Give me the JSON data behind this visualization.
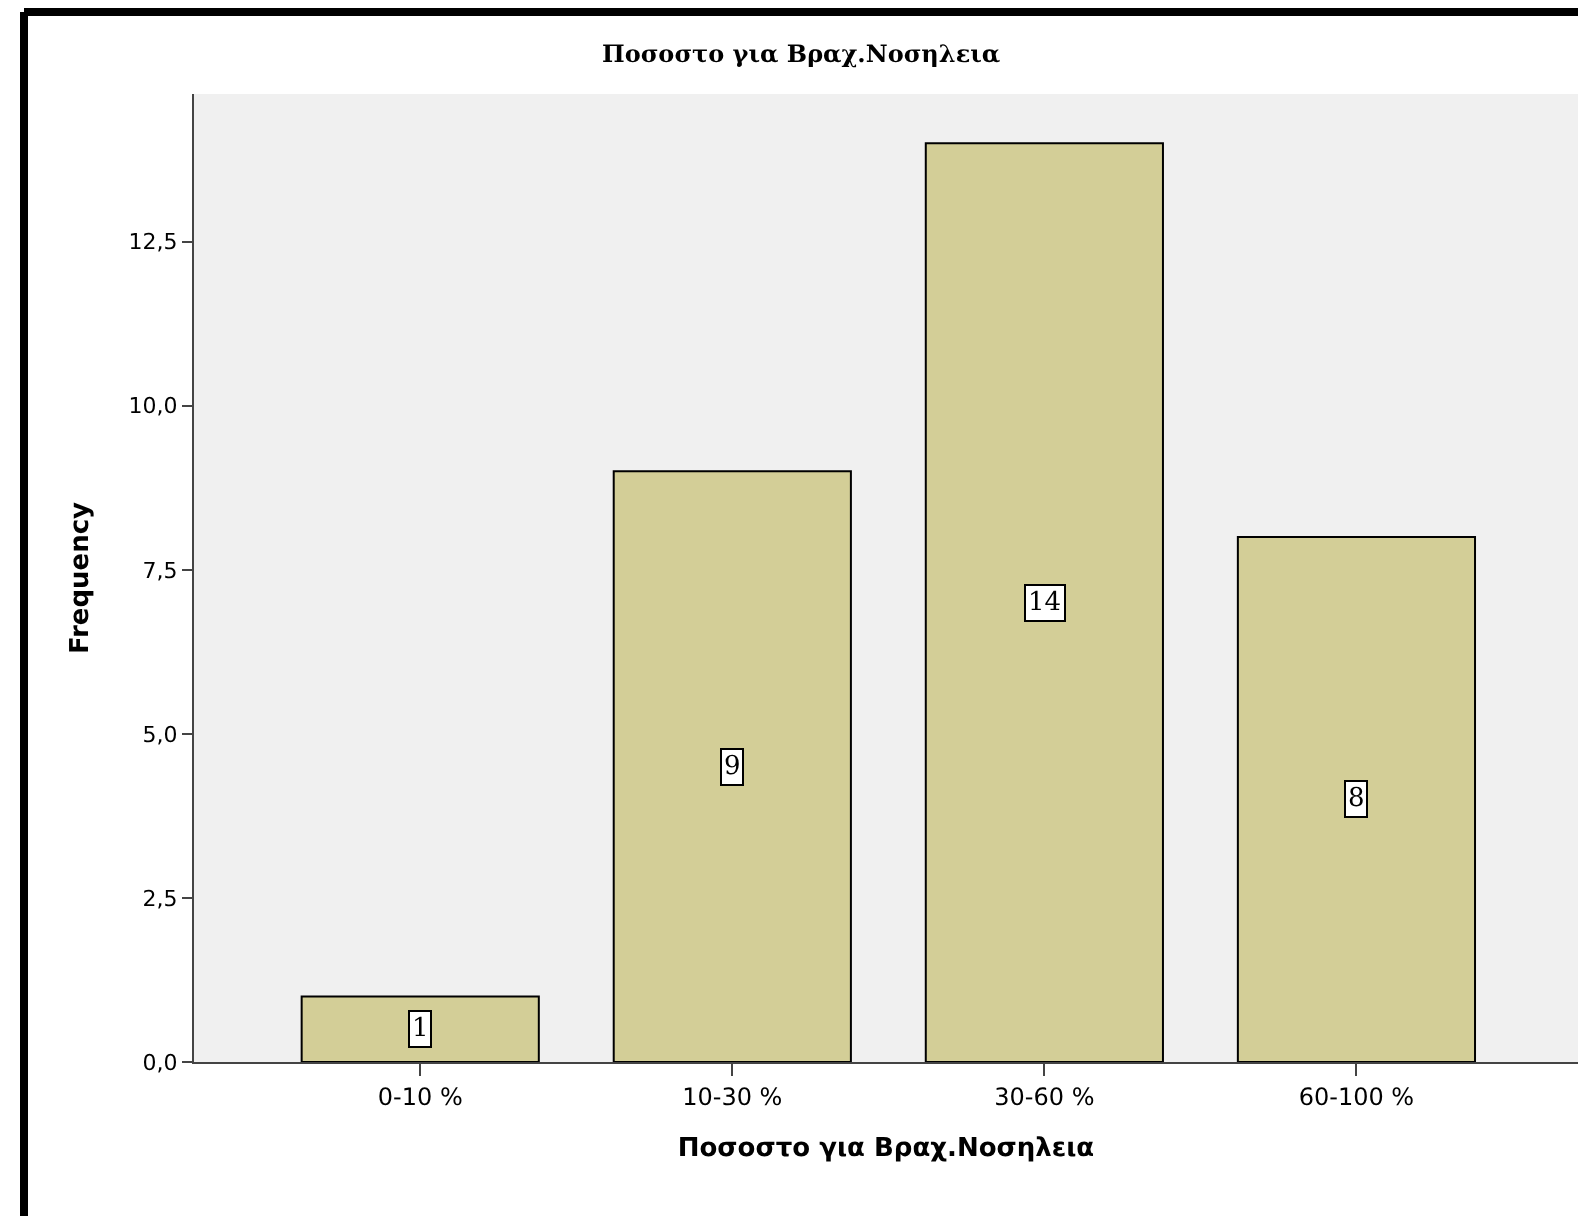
{
  "chart_data": {
    "type": "bar",
    "title": "Ποσοστο για Βραχ.Νοσηλεια",
    "xlabel": "Ποσοστο για Βραχ.Νοσηλεια",
    "ylabel": "Frequency",
    "categories": [
      "0-10 %",
      "10-30 %",
      "30-60 %",
      "60-100 %"
    ],
    "values": [
      1,
      9,
      14,
      8
    ],
    "color": "#d3ce97",
    "ylim": [
      0,
      14.75
    ],
    "yticks": [
      {
        "value": 0,
        "label": "0,0"
      },
      {
        "value": 2.5,
        "label": "2,5"
      },
      {
        "value": 5,
        "label": "5,0"
      },
      {
        "value": 7.5,
        "label": "7,5"
      },
      {
        "value": 10,
        "label": "10,0"
      },
      {
        "value": 12.5,
        "label": "12,5"
      }
    ],
    "data_labels": true
  }
}
